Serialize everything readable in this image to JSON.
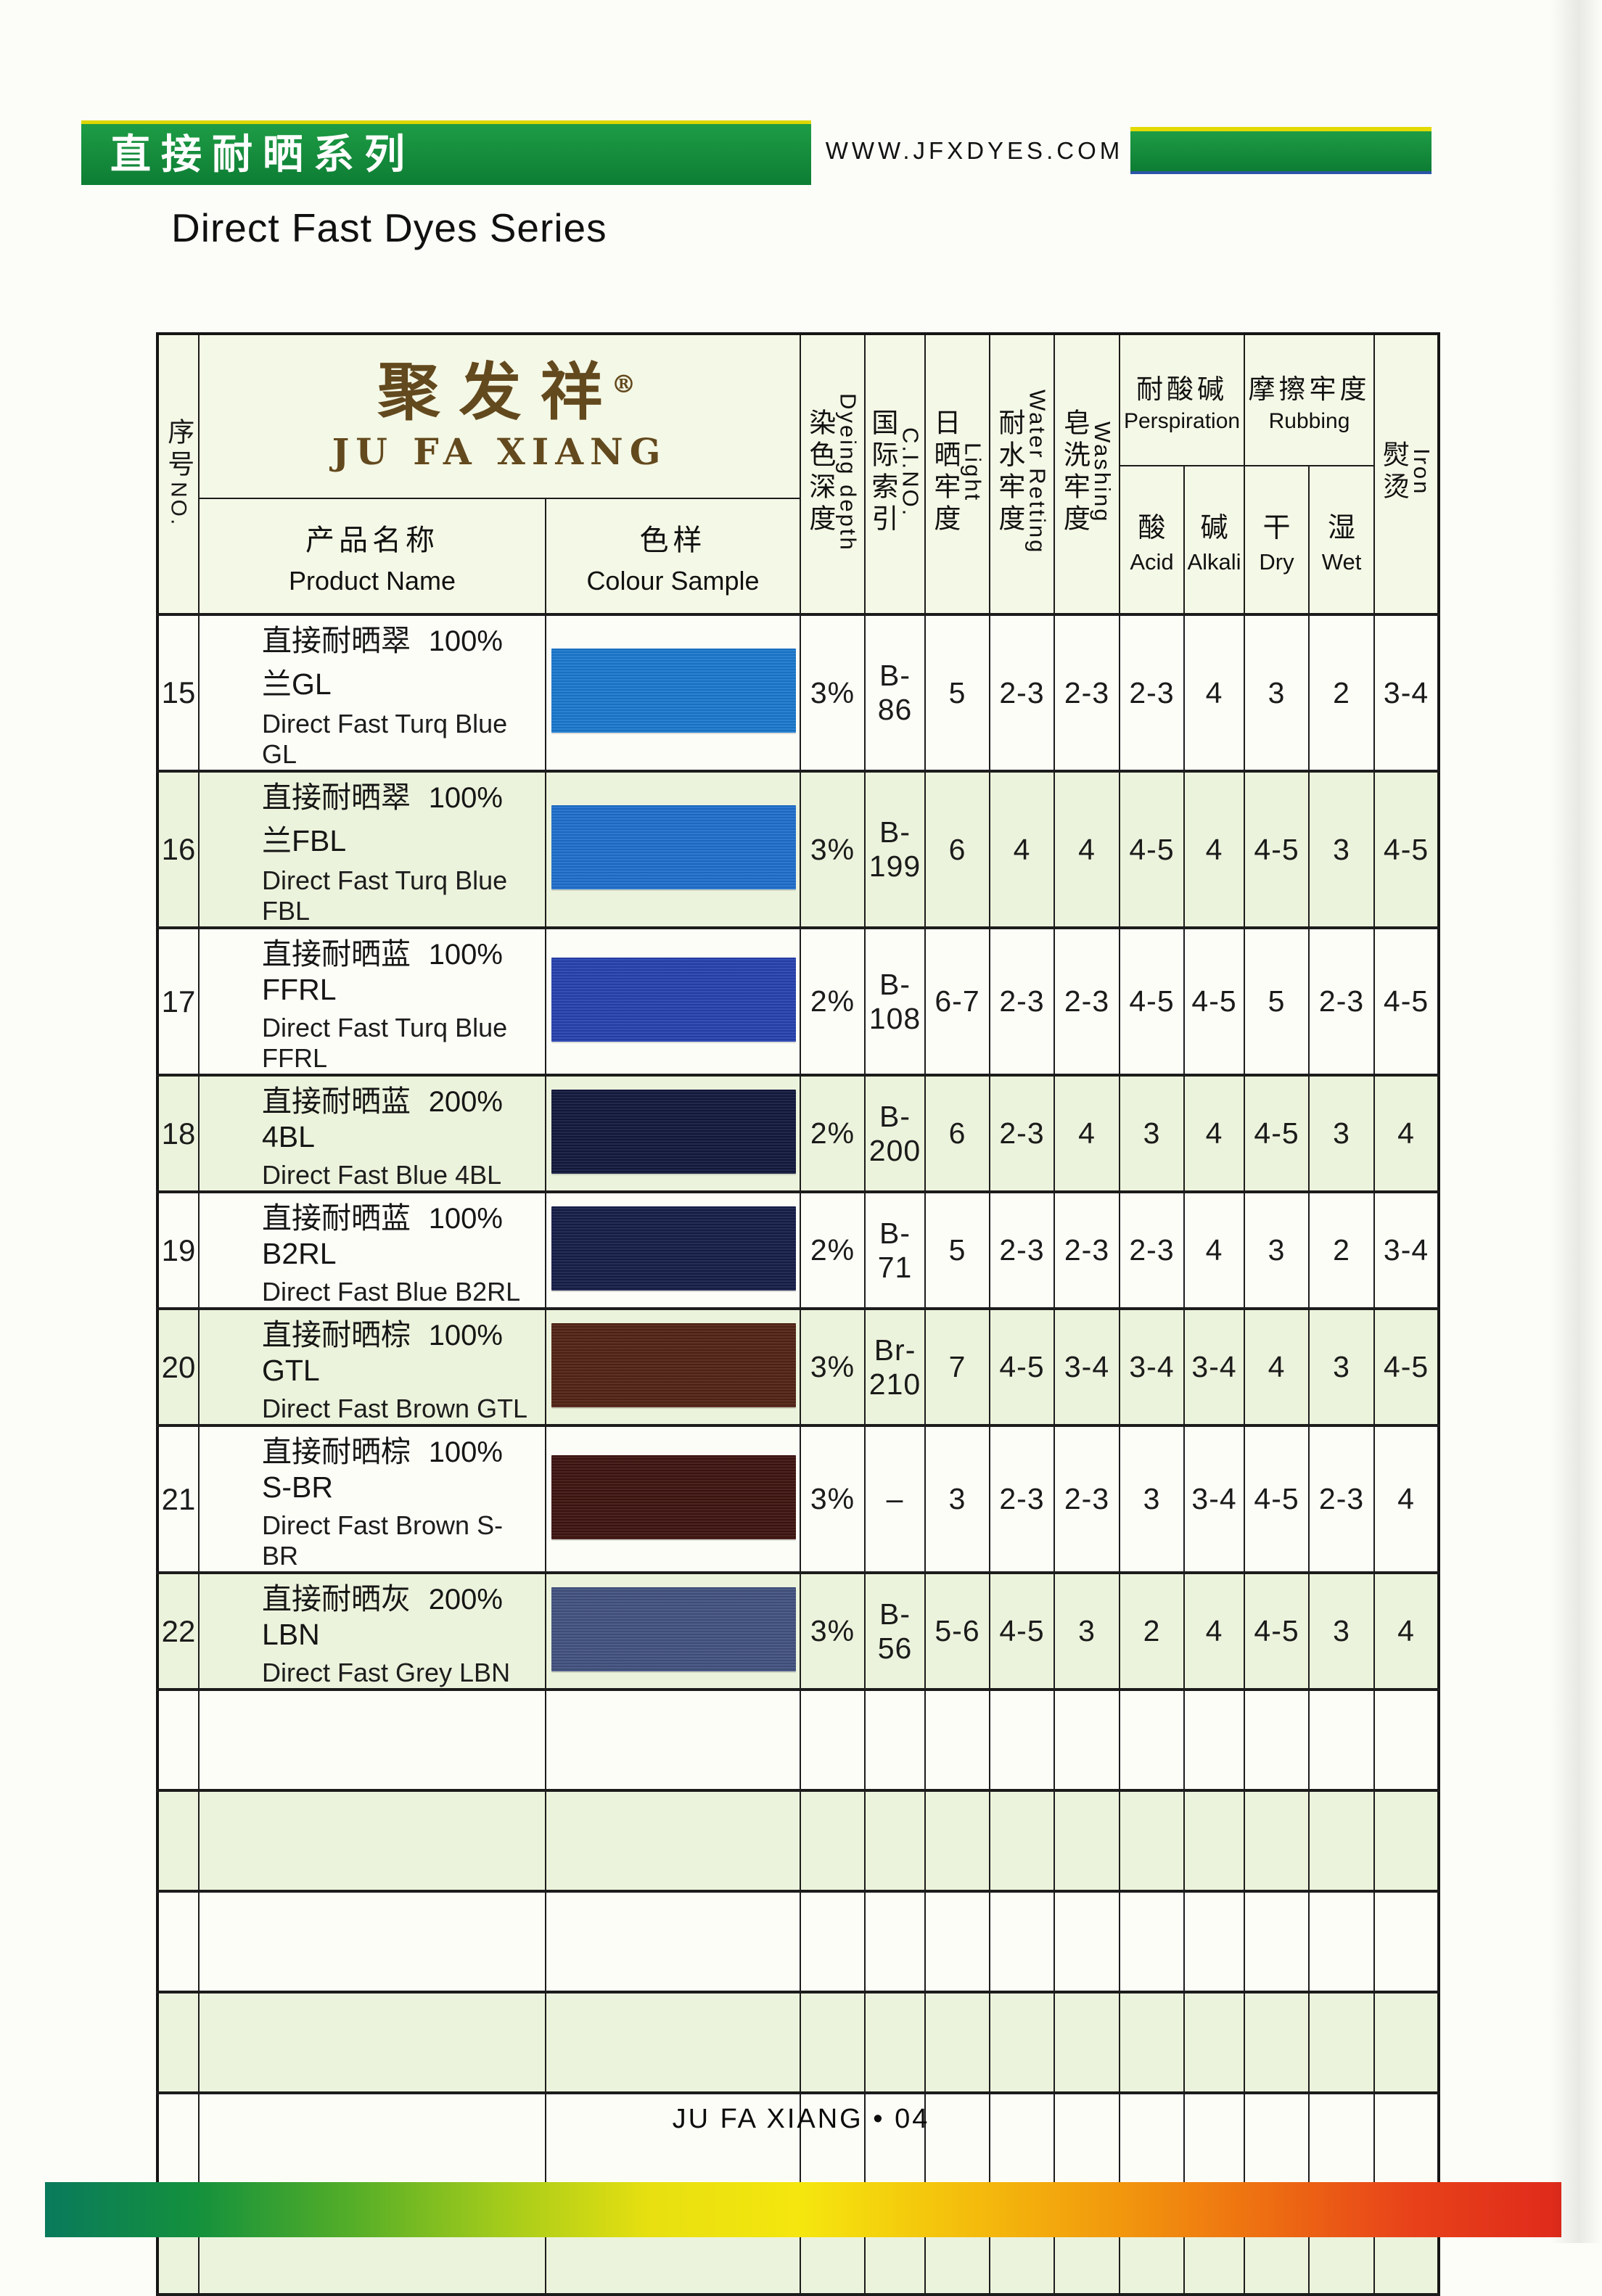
{
  "theme": {
    "banner_green_light": "#1e9c45",
    "banner_green_dark": "#0d7d34",
    "banner_yellow_line": "#ddd600",
    "banner_blue_line": "#2b55a8",
    "brand_brown": "#63491e",
    "header_bg": "#f4f8e6",
    "row_tint": "#ecf3dc",
    "rainbow": [
      "#0a7a5c",
      "#14913d",
      "#53ad28",
      "#a3cb1b",
      "#e8e010",
      "#f5e60e",
      "#f4c00c",
      "#f29b0d",
      "#ee7011",
      "#e8421a",
      "#df2a1b"
    ]
  },
  "page": {
    "banner_title_cn": "直接耐晒系列",
    "website": "WWW.JFXDYES.COM",
    "page_title_en": "Direct Fast Dyes Series",
    "footer": "JU FA XIANG • 04"
  },
  "brand": {
    "logo_cn": "聚发祥",
    "reg_mark": "®",
    "logo_en": "JU FA XIANG"
  },
  "table": {
    "headers": {
      "no_cn": "序号",
      "no_en": "NO.",
      "product_cn": "产品名称",
      "product_en": "Product Name",
      "sample_cn": "色样",
      "sample_en": "Colour Sample",
      "depth_cn": "染色深度",
      "depth_en": "Dyeing depth",
      "cino_cn": "国际索引",
      "cino_en": "C.I.NO.",
      "light_cn": "日晒牢度",
      "light_en": "Light",
      "water_cn": "耐水牢度",
      "water_en": "Water Retting",
      "washing_cn": "皂洗牢度",
      "washing_en": "Washing",
      "persp_cn": "耐酸碱",
      "persp_en": "Perspiration",
      "acid_cn": "酸",
      "acid_en": "Acid",
      "alkali_cn": "碱",
      "alkali_en": "Alkali",
      "rubbing_cn": "摩擦牢度",
      "rubbing_en": "Rubbing",
      "dry_cn": "干",
      "dry_en": "Dry",
      "wet_cn": "湿",
      "wet_en": "Wet",
      "iron_cn": "熨烫",
      "iron_en": "Iron"
    },
    "rows": [
      {
        "no": "15",
        "name_cn": "直接耐晒翠兰GL",
        "strength": "100%",
        "name_en": "Direct Fast Turq Blue GL",
        "color": "#1b79ce",
        "depth": "3%",
        "cino": "B-86",
        "light": "5",
        "water": "2-3",
        "washing": "2-3",
        "acid": "2-3",
        "alkali": "4",
        "dry": "3",
        "wet": "2",
        "iron": "3-4",
        "tint": false
      },
      {
        "no": "16",
        "name_cn": "直接耐晒翠兰FBL",
        "strength": "100%",
        "name_en": "Direct Fast Turq Blue FBL",
        "color": "#1f70cd",
        "depth": "3%",
        "cino": "B-199",
        "light": "6",
        "water": "4",
        "washing": "4",
        "acid": "4-5",
        "alkali": "4",
        "dry": "4-5",
        "wet": "3",
        "iron": "4-5",
        "tint": true
      },
      {
        "no": "17",
        "name_cn": "直接耐晒蓝FFRL",
        "strength": "100%",
        "name_en": "Direct Fast Turq Blue FFRL",
        "color": "#2742ae",
        "depth": "2%",
        "cino": "B-108",
        "light": "6-7",
        "water": "2-3",
        "washing": "2-3",
        "acid": "4-5",
        "alkali": "4-5",
        "dry": "5",
        "wet": "2-3",
        "iron": "4-5",
        "tint": false
      },
      {
        "no": "18",
        "name_cn": "直接耐晒蓝4BL",
        "strength": "200%",
        "name_en": "Direct Fast  Blue 4BL",
        "color": "#12193c",
        "depth": "2%",
        "cino": "B-200",
        "light": "6",
        "water": "2-3",
        "washing": "4",
        "acid": "3",
        "alkali": "4",
        "dry": "4-5",
        "wet": "3",
        "iron": "4",
        "tint": true
      },
      {
        "no": "19",
        "name_cn": "直接耐晒蓝B2RL",
        "strength": "100%",
        "name_en": "Direct Fast Blue B2RL",
        "color": "#161e49",
        "depth": "2%",
        "cino": "B-71",
        "light": "5",
        "water": "2-3",
        "washing": "2-3",
        "acid": "2-3",
        "alkali": "4",
        "dry": "3",
        "wet": "2",
        "iron": "3-4",
        "tint": false
      },
      {
        "no": "20",
        "name_cn": "直接耐晒棕GTL",
        "strength": "100%",
        "name_en": "Direct Fast Brown GTL",
        "color": "#522415",
        "depth": "3%",
        "cino": "Br-210",
        "light": "7",
        "water": "4-5",
        "washing": "3-4",
        "acid": "3-4",
        "alkali": "3-4",
        "dry": "4",
        "wet": "3",
        "iron": "4-5",
        "tint": true
      },
      {
        "no": "21",
        "name_cn": "直接耐晒棕S-BR",
        "strength": "100%",
        "name_en": "Direct Fast Brown S-BR",
        "color": "#3e1410",
        "depth": "3%",
        "cino": "–",
        "light": "3",
        "water": "2-3",
        "washing": "2-3",
        "acid": "3",
        "alkali": "3-4",
        "dry": "4-5",
        "wet": "2-3",
        "iron": "4",
        "tint": false
      },
      {
        "no": "22",
        "name_cn": "直接耐晒灰LBN",
        "strength": "200%",
        "name_en": "Direct Fast Grey LBN",
        "color": "#42527f",
        "depth": "3%",
        "cino": "B-56",
        "light": "5-6",
        "water": "4-5",
        "washing": "3",
        "acid": "2",
        "alkali": "4",
        "dry": "4-5",
        "wet": "3",
        "iron": "4",
        "tint": true
      }
    ],
    "empty_rows": 6
  }
}
